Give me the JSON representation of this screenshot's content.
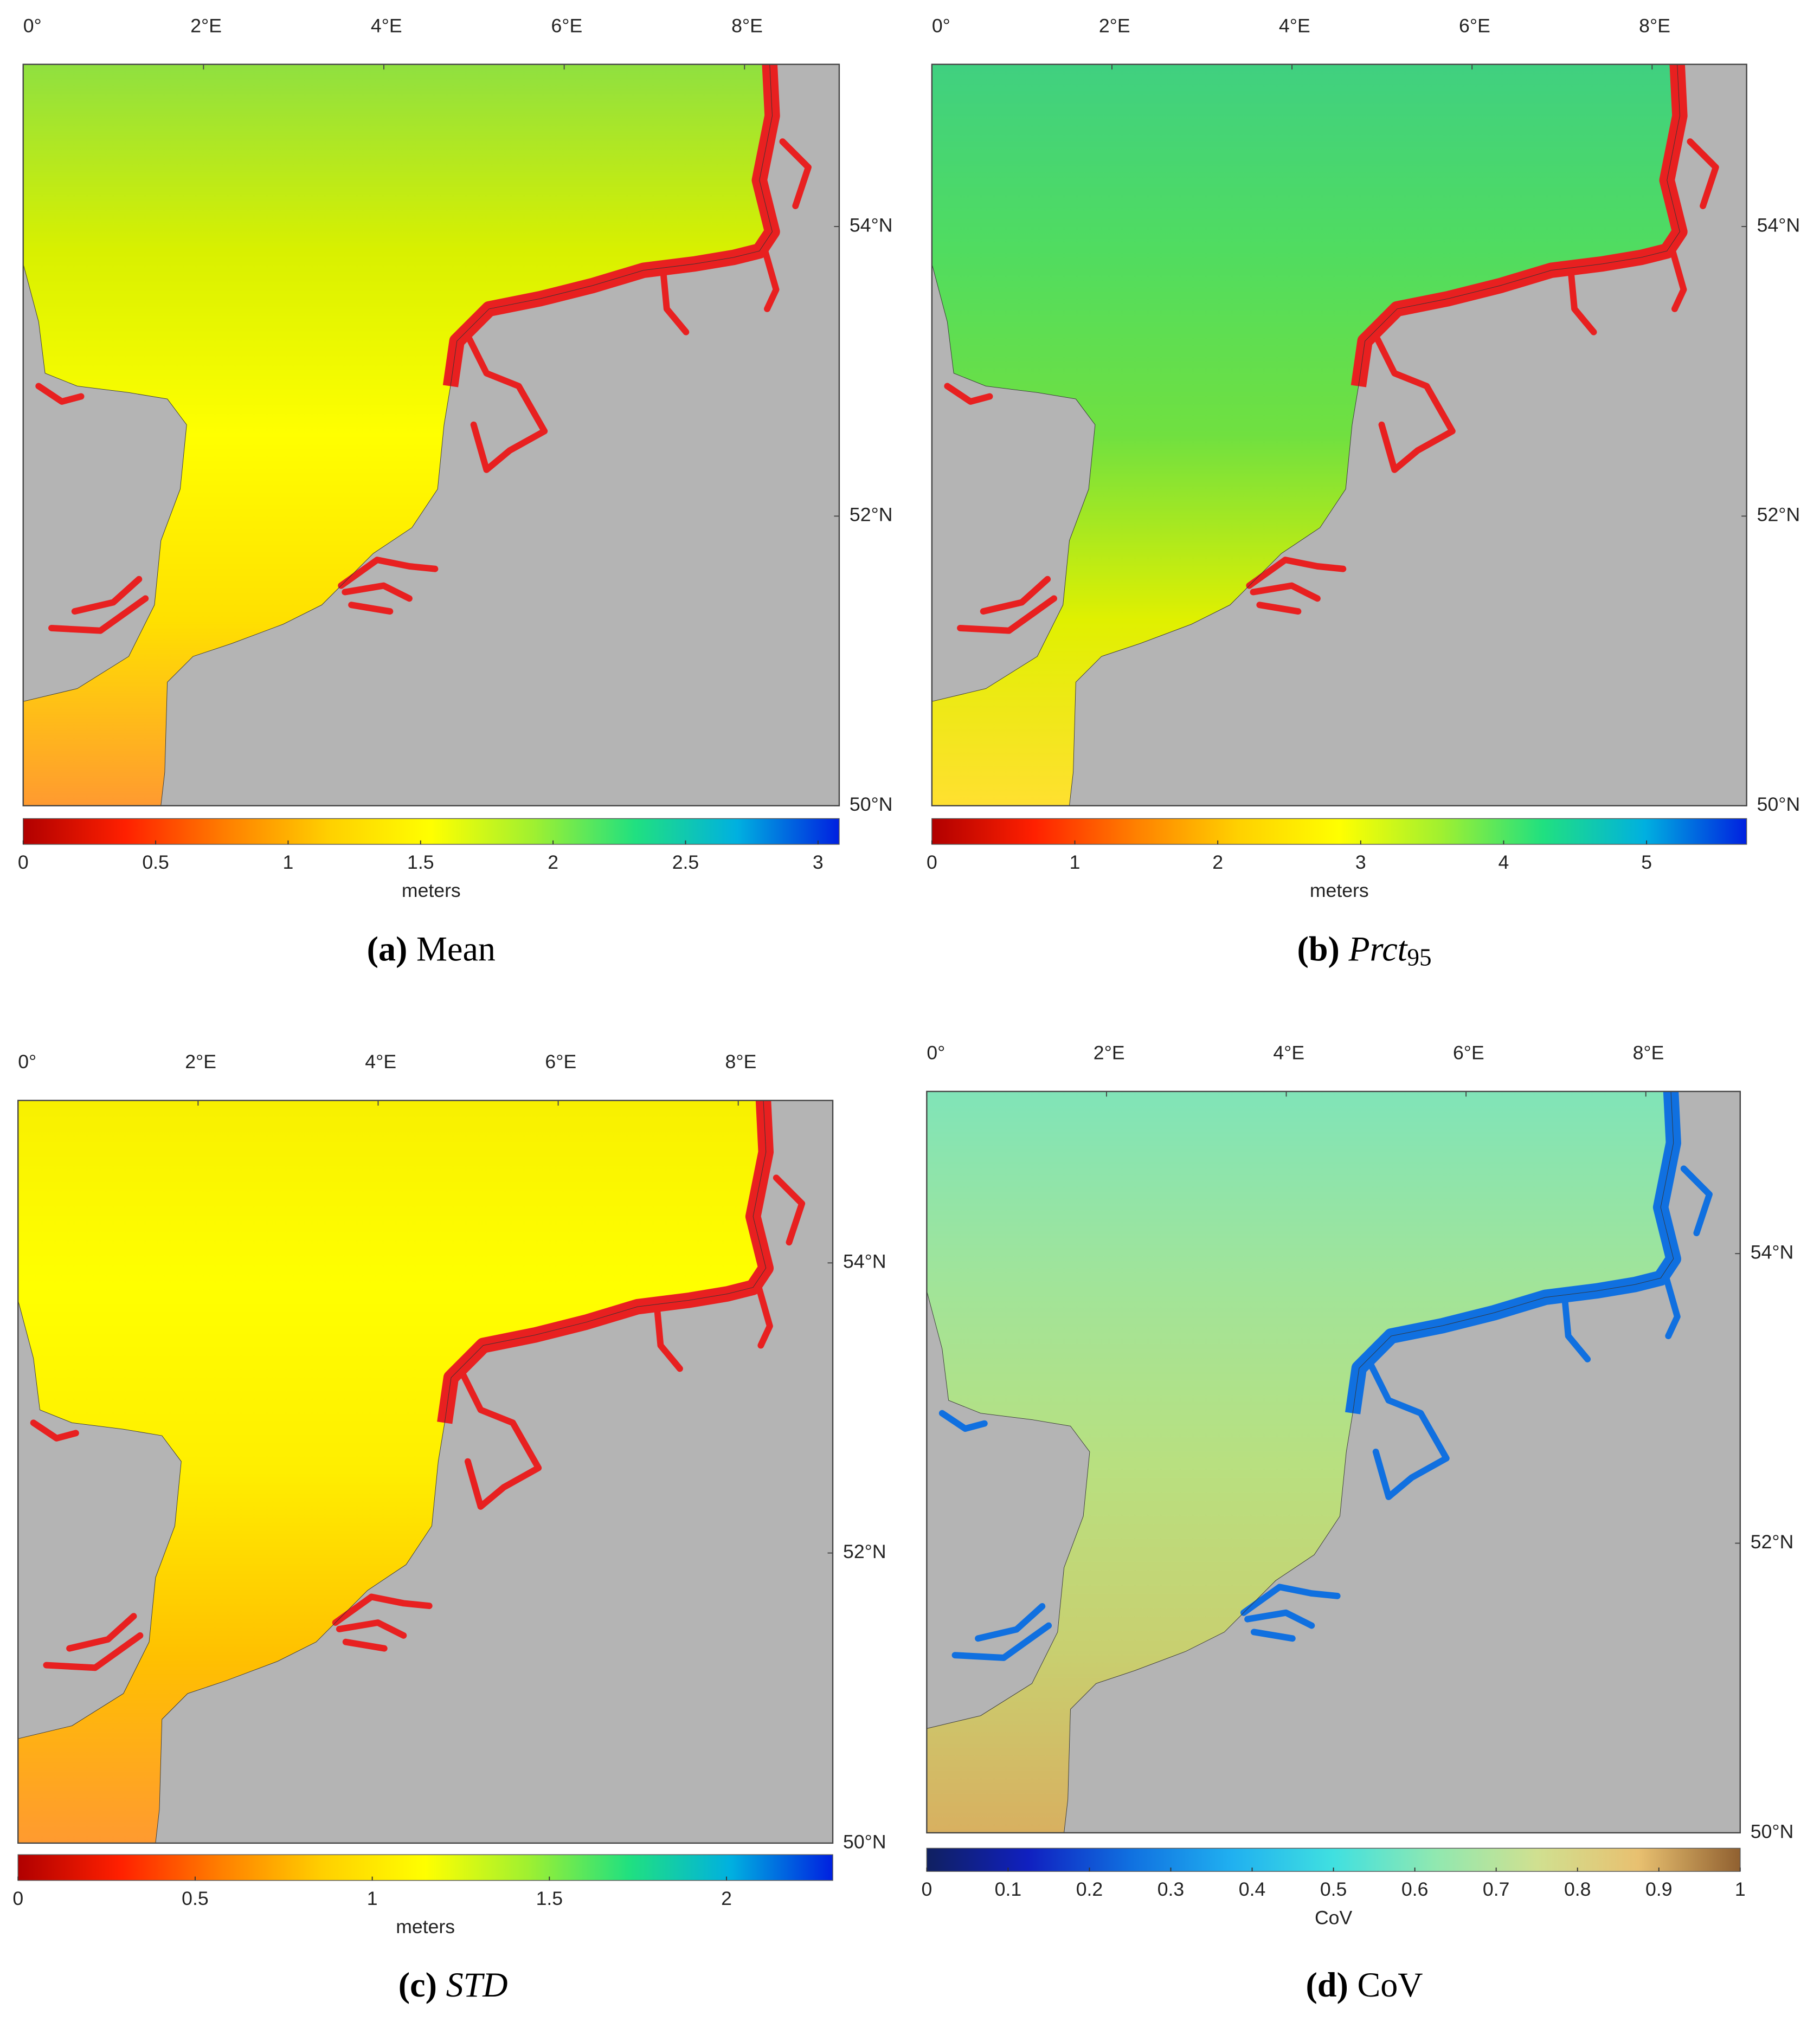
{
  "panels": [
    {
      "tag": "(a)",
      "caption": "Mean",
      "caption_italic": false,
      "lonlim": [
        0,
        9.05
      ],
      "latlim": [
        50,
        55.12
      ],
      "lon_ticks": [
        {
          "value": 0,
          "label": "0°"
        },
        {
          "value": 2,
          "label": "2°E"
        },
        {
          "value": 4,
          "label": "4°E"
        },
        {
          "value": 6,
          "label": "6°E"
        },
        {
          "value": 8,
          "label": "8°E"
        }
      ],
      "lat_ticks": [
        {
          "value": 54,
          "label": "54°N"
        },
        {
          "value": 52,
          "label": "52°N"
        },
        {
          "value": 50,
          "label": "50°N"
        }
      ],
      "sea_colors": [
        "#8fe040",
        "#d8f000",
        "#ffff00",
        "#ffe000",
        "#ff9a30"
      ],
      "coast_color": "#e82020",
      "colorbar": {
        "lim": [
          0,
          3.08
        ],
        "ticks": [
          0,
          0.5,
          1,
          1.5,
          2,
          2.5,
          3
        ],
        "label": "meters",
        "colors": [
          "#b00000",
          "#ff2000",
          "#ff8000",
          "#ffd000",
          "#ffff00",
          "#a0f030",
          "#20e080",
          "#00b0e0",
          "#0020e0"
        ]
      }
    },
    {
      "tag": "(b)",
      "caption": "Prct",
      "caption_sub": "95",
      "caption_italic": true,
      "lonlim": [
        0,
        9.05
      ],
      "latlim": [
        50,
        55.12
      ],
      "lon_ticks": [
        {
          "value": 0,
          "label": "0°"
        },
        {
          "value": 2,
          "label": "2°E"
        },
        {
          "value": 4,
          "label": "4°E"
        },
        {
          "value": 6,
          "label": "6°E"
        },
        {
          "value": 8,
          "label": "8°E"
        }
      ],
      "lat_ticks": [
        {
          "value": 54,
          "label": "54°N"
        },
        {
          "value": 52,
          "label": "52°N"
        },
        {
          "value": 50,
          "label": "50°N"
        }
      ],
      "sea_colors": [
        "#40d080",
        "#50dc60",
        "#70e040",
        "#e0f000",
        "#ffe030"
      ],
      "coast_color": "#e82020",
      "colorbar": {
        "lim": [
          0,
          5.7
        ],
        "ticks": [
          0,
          1,
          2,
          3,
          4,
          5
        ],
        "label": "meters",
        "colors": [
          "#b00000",
          "#ff2000",
          "#ff8000",
          "#ffd000",
          "#ffff00",
          "#a0f030",
          "#20e080",
          "#00b0e0",
          "#0020e0"
        ]
      }
    },
    {
      "tag": "(c)",
      "caption": "STD",
      "caption_italic": true,
      "lonlim": [
        0,
        9.05
      ],
      "latlim": [
        50,
        55.12
      ],
      "lon_ticks": [
        {
          "value": 0,
          "label": "0°"
        },
        {
          "value": 2,
          "label": "2°E"
        },
        {
          "value": 4,
          "label": "4°E"
        },
        {
          "value": 6,
          "label": "6°E"
        },
        {
          "value": 8,
          "label": "8°E"
        }
      ],
      "lat_ticks": [
        {
          "value": 54,
          "label": "54°N"
        },
        {
          "value": 52,
          "label": "52°N"
        },
        {
          "value": 50,
          "label": "50°N"
        }
      ],
      "sea_colors": [
        "#f8f000",
        "#ffff00",
        "#ffee00",
        "#ffc000",
        "#ff9a30"
      ],
      "coast_color": "#e82020",
      "colorbar": {
        "lim": [
          0,
          2.3
        ],
        "ticks": [
          0,
          0.5,
          1,
          1.5,
          2
        ],
        "label": "meters",
        "colors": [
          "#b00000",
          "#ff2000",
          "#ff8000",
          "#ffd000",
          "#ffff00",
          "#a0f030",
          "#20e080",
          "#00b0e0",
          "#0020e0"
        ]
      }
    },
    {
      "tag": "(d)",
      "caption": "CoV",
      "caption_italic": false,
      "lonlim": [
        0,
        9.05
      ],
      "latlim": [
        50,
        55.12
      ],
      "lon_ticks": [
        {
          "value": 0,
          "label": "0°"
        },
        {
          "value": 2,
          "label": "2°E"
        },
        {
          "value": 4,
          "label": "4°E"
        },
        {
          "value": 6,
          "label": "6°E"
        },
        {
          "value": 8,
          "label": "8°E"
        }
      ],
      "lat_ticks": [
        {
          "value": 54,
          "label": "54°N"
        },
        {
          "value": 52,
          "label": "52°N"
        },
        {
          "value": 50,
          "label": "50°N"
        }
      ],
      "sea_colors": [
        "#80e4b8",
        "#a0e49a",
        "#b8e080",
        "#c8d070",
        "#d8b060"
      ],
      "coast_color": "#1070e0",
      "colorbar": {
        "lim": [
          0,
          1
        ],
        "ticks": [
          0,
          0.1,
          0.2,
          0.3,
          0.4,
          0.5,
          0.6,
          0.7,
          0.8,
          0.9,
          1
        ],
        "label": "CoV",
        "colors": [
          "#102060",
          "#1020c0",
          "#1070e0",
          "#20b0f0",
          "#40e0e0",
          "#90e8b0",
          "#d0e090",
          "#e8c070",
          "#906030"
        ]
      }
    }
  ]
}
